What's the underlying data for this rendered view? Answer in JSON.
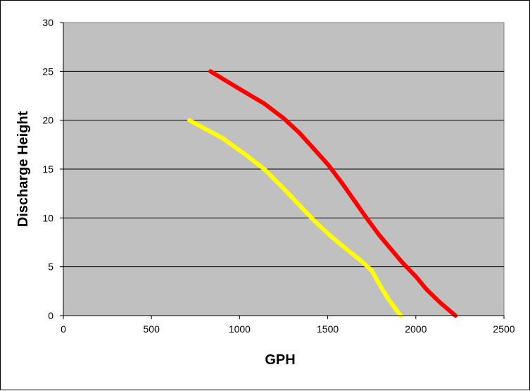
{
  "chart_data": {
    "type": "line",
    "title": "",
    "xlabel": "GPH",
    "ylabel": "Discharge Height",
    "xlim": [
      0,
      2500
    ],
    "ylim": [
      0,
      30
    ],
    "x_ticks": [
      0,
      500,
      1000,
      1500,
      2000,
      2500
    ],
    "y_ticks": [
      0,
      5,
      10,
      15,
      20,
      25,
      30
    ],
    "grid": "horizontal",
    "legend": "none",
    "plot_background": "#c0c0c0",
    "series": [
      {
        "color": "#ff0000",
        "points": [
          [
            835,
            25
          ],
          [
            1000,
            23.2
          ],
          [
            1140,
            21.7
          ],
          [
            1250,
            20.2
          ],
          [
            1340,
            18.7
          ],
          [
            1420,
            17.1
          ],
          [
            1500,
            15.5
          ],
          [
            1580,
            13.6
          ],
          [
            1650,
            11.8
          ],
          [
            1720,
            10
          ],
          [
            1790,
            8.3
          ],
          [
            1850,
            7
          ],
          [
            1920,
            5.5
          ],
          [
            2000,
            4
          ],
          [
            2060,
            2.7
          ],
          [
            2140,
            1.3
          ],
          [
            2225,
            0
          ]
        ]
      },
      {
        "color": "#ffff00",
        "points": [
          [
            715,
            20
          ],
          [
            900,
            18.2
          ],
          [
            1040,
            16.4
          ],
          [
            1140,
            15
          ],
          [
            1240,
            13.2
          ],
          [
            1340,
            11.3
          ],
          [
            1430,
            9.6
          ],
          [
            1520,
            8.1
          ],
          [
            1600,
            6.9
          ],
          [
            1690,
            5.6
          ],
          [
            1750,
            4.6
          ],
          [
            1790,
            3.3
          ],
          [
            1840,
            1.8
          ],
          [
            1880,
            0.8
          ],
          [
            1915,
            0
          ]
        ]
      }
    ]
  }
}
